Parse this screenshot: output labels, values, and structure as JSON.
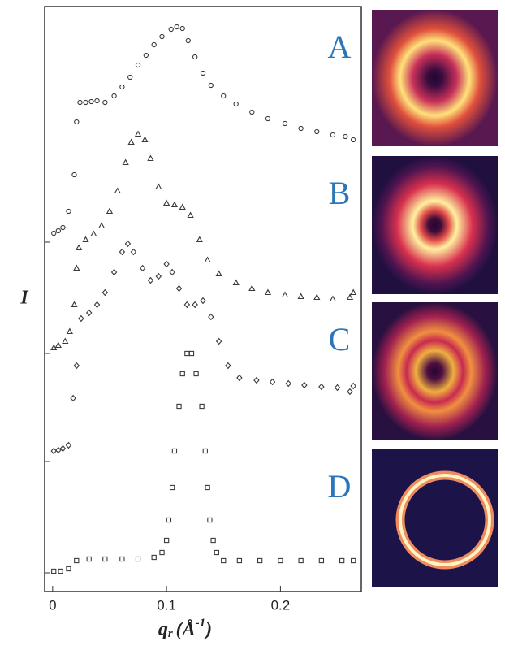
{
  "chart_data": {
    "type": "scatter",
    "y_label": "I",
    "x_label": {
      "symbol": "q",
      "subscript": "r",
      "unit_open": "(Å",
      "exponent": "-1",
      "unit_close": ")"
    },
    "xlim": [
      -0.007,
      0.271
    ],
    "xticks": [
      0,
      0.1,
      0.2
    ],
    "ylim": [
      0,
      720
    ],
    "yticks": [
      23,
      160,
      293,
      430
    ],
    "series": [
      {
        "name": "A",
        "color": "#3a3a3a",
        "marker": "circle",
        "x": [
          0.001,
          0.005,
          0.009,
          0.014,
          0.019,
          0.021,
          0.024,
          0.029,
          0.034,
          0.039,
          0.046,
          0.054,
          0.061,
          0.068,
          0.075,
          0.082,
          0.089,
          0.096,
          0.104,
          0.109,
          0.114,
          0.119,
          0.125,
          0.132,
          0.139,
          0.15,
          0.161,
          0.175,
          0.189,
          0.204,
          0.218,
          0.232,
          0.246,
          0.257,
          0.264
        ],
        "values": [
          441,
          444,
          448,
          468,
          513,
          578,
          602,
          602,
          603,
          604,
          602,
          610,
          621,
          633,
          648,
          660,
          673,
          683,
          692,
          695,
          693,
          678,
          658,
          638,
          623,
          610,
          600,
          590,
          582,
          576,
          570,
          566,
          562,
          560,
          556
        ]
      },
      {
        "name": "B",
        "color": "#3a3a3a",
        "marker": "triangle",
        "x": [
          0.001,
          0.005,
          0.011,
          0.015,
          0.019,
          0.021,
          0.023,
          0.029,
          0.036,
          0.043,
          0.05,
          0.057,
          0.064,
          0.069,
          0.075,
          0.081,
          0.086,
          0.093,
          0.1,
          0.107,
          0.114,
          0.121,
          0.129,
          0.136,
          0.146,
          0.161,
          0.175,
          0.189,
          0.204,
          0.218,
          0.232,
          0.246,
          0.261,
          0.264
        ],
        "values": [
          300,
          303,
          308,
          320,
          353,
          398,
          423,
          433,
          440,
          450,
          468,
          493,
          528,
          553,
          563,
          556,
          533,
          498,
          478,
          476,
          473,
          463,
          433,
          408,
          391,
          380,
          373,
          368,
          365,
          363,
          362,
          360,
          362,
          368
        ]
      },
      {
        "name": "C",
        "color": "#3a3a3a",
        "marker": "diamond",
        "x": [
          0.001,
          0.005,
          0.009,
          0.014,
          0.018,
          0.021,
          0.025,
          0.032,
          0.039,
          0.046,
          0.054,
          0.061,
          0.066,
          0.071,
          0.079,
          0.086,
          0.093,
          0.1,
          0.105,
          0.111,
          0.118,
          0.125,
          0.132,
          0.139,
          0.146,
          0.154,
          0.164,
          0.179,
          0.193,
          0.207,
          0.221,
          0.236,
          0.25,
          0.261,
          0.264
        ],
        "values": [
          173,
          174,
          176,
          180,
          238,
          278,
          336,
          343,
          353,
          368,
          393,
          418,
          428,
          418,
          398,
          383,
          388,
          403,
          393,
          373,
          353,
          353,
          358,
          338,
          308,
          278,
          263,
          260,
          258,
          256,
          254,
          252,
          251,
          246,
          253
        ]
      },
      {
        "name": "D",
        "color": "#3a3a3a",
        "marker": "square",
        "x": [
          0.001,
          0.007,
          0.014,
          0.021,
          0.032,
          0.046,
          0.061,
          0.075,
          0.089,
          0.096,
          0.1,
          0.102,
          0.105,
          0.107,
          0.111,
          0.114,
          0.118,
          0.122,
          0.126,
          0.131,
          0.134,
          0.136,
          0.138,
          0.141,
          0.144,
          0.15,
          0.164,
          0.182,
          0.2,
          0.218,
          0.236,
          0.254,
          0.264
        ],
        "values": [
          25,
          25,
          28,
          38,
          40,
          40,
          40,
          40,
          42,
          48,
          63,
          88,
          128,
          173,
          228,
          268,
          293,
          293,
          268,
          228,
          173,
          128,
          88,
          63,
          48,
          38,
          38,
          38,
          38,
          38,
          38,
          38,
          38
        ]
      }
    ]
  }
}
